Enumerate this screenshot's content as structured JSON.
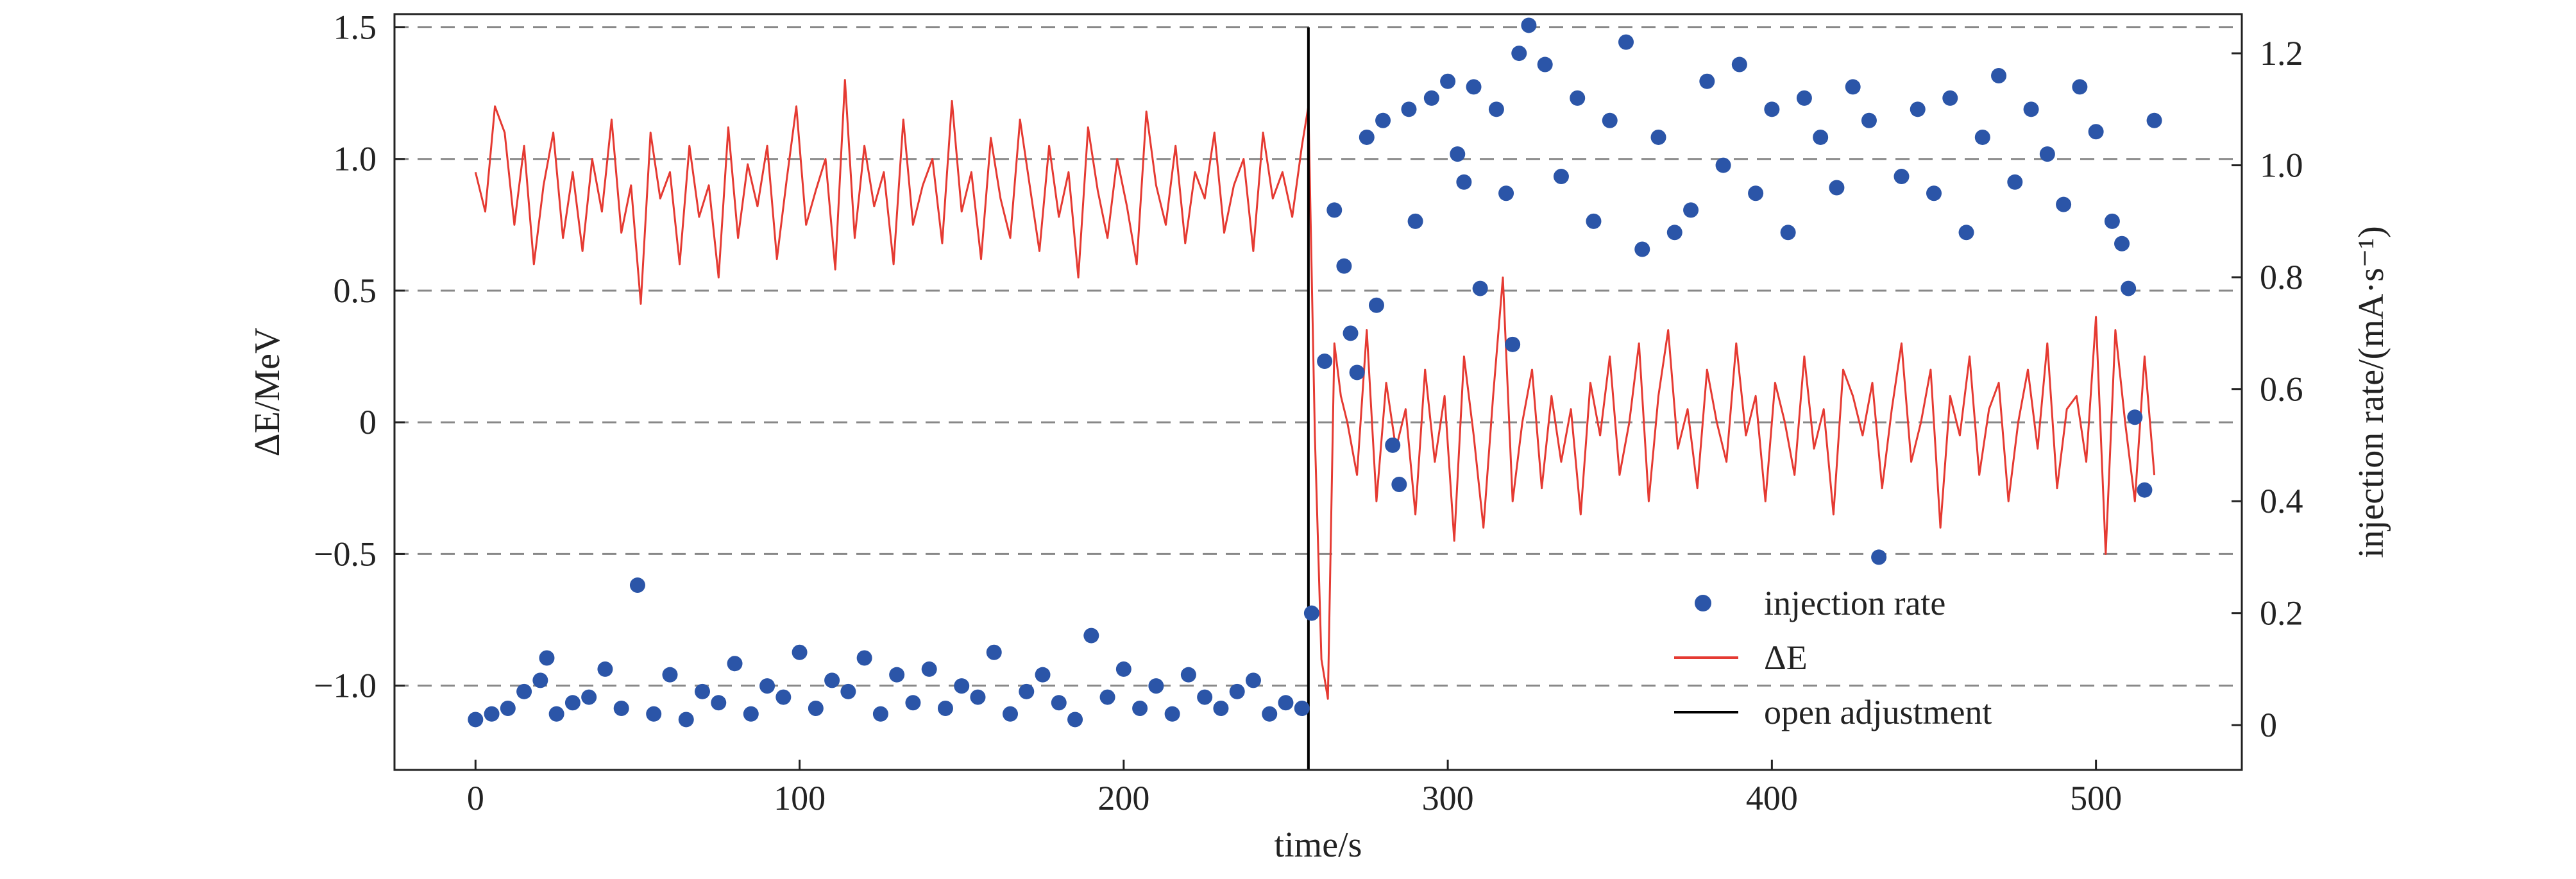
{
  "chart_data": {
    "type": "line",
    "title": "",
    "xlabel": "time/s",
    "ylabel_left": "ΔE/MeV",
    "ylabel_right": "injection rate/(mA·s⁻¹)",
    "xlim": [
      -25,
      545
    ],
    "ylim_left": [
      -1.32,
      1.55
    ],
    "ylim_right": [
      -0.08,
      1.27
    ],
    "x_ticks": [
      0,
      100,
      200,
      300,
      400,
      500
    ],
    "x_tick_labels": [
      "0",
      "100",
      "200",
      "300",
      "400",
      "500"
    ],
    "y_left_ticks": [
      -1.0,
      -0.5,
      0,
      0.5,
      1.0,
      1.5
    ],
    "y_left_tick_labels": [
      "−1.0",
      "−0.5",
      "0",
      "0.5",
      "1.0",
      "1.5"
    ],
    "y_right_ticks": [
      0,
      0.2,
      0.4,
      0.6,
      0.8,
      1.0,
      1.2
    ],
    "y_right_tick_labels": [
      "0",
      "0.2",
      "0.4",
      "0.6",
      "0.8",
      "1.0",
      "1.2"
    ],
    "grid": "dashed horizontal lines at left-axis ticks",
    "legend_position": "lower-right",
    "vline": {
      "x": 257,
      "y_top": 1.5,
      "name": "open adjustment",
      "color": "#000000"
    },
    "series": [
      {
        "name": "injection rate",
        "type": "scatter",
        "axis": "right",
        "color": "#2b55a8",
        "x": [
          0,
          5,
          10,
          15,
          20,
          22,
          25,
          30,
          35,
          40,
          45,
          50,
          55,
          60,
          65,
          70,
          75,
          80,
          85,
          90,
          95,
          100,
          105,
          110,
          115,
          120,
          125,
          130,
          135,
          140,
          145,
          150,
          155,
          160,
          165,
          170,
          175,
          180,
          185,
          190,
          195,
          200,
          205,
          210,
          215,
          220,
          225,
          230,
          235,
          240,
          245,
          250,
          255,
          258,
          262,
          265,
          268,
          270,
          272,
          275,
          278,
          280,
          283,
          285,
          288,
          290,
          295,
          300,
          303,
          305,
          308,
          310,
          315,
          318,
          320,
          322,
          325,
          330,
          335,
          340,
          345,
          350,
          355,
          360,
          365,
          370,
          375,
          380,
          385,
          390,
          395,
          400,
          405,
          410,
          415,
          420,
          425,
          430,
          433,
          440,
          445,
          450,
          455,
          460,
          465,
          470,
          475,
          480,
          485,
          490,
          495,
          500,
          505,
          508,
          510,
          512,
          515,
          518
        ],
        "values": [
          0.01,
          0.02,
          0.03,
          0.06,
          0.08,
          0.12,
          0.02,
          0.04,
          0.05,
          0.1,
          0.03,
          0.25,
          0.02,
          0.09,
          0.01,
          0.06,
          0.04,
          0.11,
          0.02,
          0.07,
          0.05,
          0.13,
          0.03,
          0.08,
          0.06,
          0.12,
          0.02,
          0.09,
          0.04,
          0.1,
          0.03,
          0.07,
          0.05,
          0.13,
          0.02,
          0.06,
          0.09,
          0.04,
          0.01,
          0.16,
          0.05,
          0.1,
          0.03,
          0.07,
          0.02,
          0.09,
          0.05,
          0.03,
          0.06,
          0.08,
          0.02,
          0.04,
          0.03,
          0.2,
          0.65,
          0.92,
          0.82,
          0.7,
          0.63,
          1.05,
          0.75,
          1.08,
          0.5,
          0.43,
          1.1,
          0.9,
          1.12,
          1.15,
          1.02,
          0.97,
          1.14,
          0.78,
          1.1,
          0.95,
          0.68,
          1.2,
          1.25,
          1.18,
          0.98,
          1.12,
          0.9,
          1.08,
          1.22,
          0.85,
          1.05,
          0.88,
          0.92,
          1.15,
          1.0,
          1.18,
          0.95,
          1.1,
          0.88,
          1.12,
          1.05,
          0.96,
          1.14,
          1.08,
          0.3,
          0.98,
          1.1,
          0.95,
          1.12,
          0.88,
          1.05,
          1.16,
          0.97,
          1.1,
          1.02,
          0.93,
          1.14,
          1.06,
          0.9,
          0.86,
          0.78,
          0.55,
          0.42,
          1.08
        ]
      },
      {
        "name": "ΔE",
        "type": "line",
        "axis": "left",
        "color": "#e53a32",
        "x": [
          0,
          3,
          6,
          9,
          12,
          15,
          18,
          21,
          24,
          27,
          30,
          33,
          36,
          39,
          42,
          45,
          48,
          51,
          54,
          57,
          60,
          63,
          66,
          69,
          72,
          75,
          78,
          81,
          84,
          87,
          90,
          93,
          96,
          99,
          102,
          105,
          108,
          111,
          114,
          117,
          120,
          123,
          126,
          129,
          132,
          135,
          138,
          141,
          144,
          147,
          150,
          153,
          156,
          159,
          162,
          165,
          168,
          171,
          174,
          177,
          180,
          183,
          186,
          189,
          192,
          195,
          198,
          201,
          204,
          207,
          210,
          213,
          216,
          219,
          222,
          225,
          228,
          231,
          234,
          237,
          240,
          243,
          246,
          249,
          252,
          255,
          257,
          259,
          261,
          263,
          265,
          267,
          269,
          272,
          275,
          278,
          281,
          284,
          287,
          290,
          293,
          296,
          299,
          302,
          305,
          308,
          311,
          314,
          317,
          320,
          323,
          326,
          329,
          332,
          335,
          338,
          341,
          344,
          347,
          350,
          353,
          356,
          359,
          362,
          365,
          368,
          371,
          374,
          377,
          380,
          383,
          386,
          389,
          392,
          395,
          398,
          401,
          404,
          407,
          410,
          413,
          416,
          419,
          422,
          425,
          428,
          431,
          434,
          437,
          440,
          443,
          446,
          449,
          452,
          455,
          458,
          461,
          464,
          467,
          470,
          473,
          476,
          479,
          482,
          485,
          488,
          491,
          494,
          497,
          500,
          503,
          506,
          509,
          512,
          515,
          518
        ],
        "values": [
          0.95,
          0.8,
          1.2,
          1.1,
          0.75,
          1.05,
          0.6,
          0.9,
          1.1,
          0.7,
          0.95,
          0.65,
          1.0,
          0.8,
          1.15,
          0.72,
          0.9,
          0.45,
          1.1,
          0.85,
          0.95,
          0.6,
          1.05,
          0.78,
          0.9,
          0.55,
          1.12,
          0.7,
          0.98,
          0.82,
          1.05,
          0.62,
          0.92,
          1.2,
          0.75,
          0.88,
          1.0,
          0.58,
          1.3,
          0.7,
          1.05,
          0.82,
          0.95,
          0.6,
          1.15,
          0.75,
          0.9,
          1.0,
          0.68,
          1.22,
          0.8,
          0.95,
          0.62,
          1.08,
          0.85,
          0.7,
          1.15,
          0.9,
          0.65,
          1.05,
          0.78,
          0.95,
          0.55,
          1.12,
          0.88,
          0.7,
          1.0,
          0.82,
          0.6,
          1.18,
          0.9,
          0.75,
          1.05,
          0.68,
          0.95,
          0.85,
          1.1,
          0.72,
          0.9,
          1.0,
          0.65,
          1.1,
          0.85,
          0.95,
          0.78,
          1.05,
          1.2,
          -0.05,
          -0.9,
          -1.05,
          0.3,
          0.1,
          0.0,
          -0.2,
          0.35,
          -0.3,
          0.15,
          -0.1,
          0.05,
          -0.35,
          0.2,
          -0.15,
          0.1,
          -0.45,
          0.25,
          -0.05,
          -0.4,
          0.1,
          0.55,
          -0.3,
          0.0,
          0.2,
          -0.25,
          0.1,
          -0.15,
          0.05,
          -0.35,
          0.15,
          -0.05,
          0.25,
          -0.2,
          0.0,
          0.3,
          -0.3,
          0.1,
          0.35,
          -0.1,
          0.05,
          -0.25,
          0.2,
          0.0,
          -0.15,
          0.3,
          -0.05,
          0.1,
          -0.3,
          0.15,
          0.0,
          -0.2,
          0.25,
          -0.1,
          0.05,
          -0.35,
          0.2,
          0.1,
          -0.05,
          0.15,
          -0.25,
          0.05,
          0.3,
          -0.15,
          0.0,
          0.2,
          -0.4,
          0.1,
          -0.05,
          0.25,
          -0.2,
          0.05,
          0.15,
          -0.3,
          0.0,
          0.2,
          -0.1,
          0.3,
          -0.25,
          0.05,
          0.1,
          -0.15,
          0.4,
          -0.5,
          0.35,
          0.0,
          -0.3,
          0.25,
          -0.2
        ]
      }
    ],
    "legend": [
      {
        "name": "injection rate",
        "marker": "dot",
        "color": "#2b55a8"
      },
      {
        "name": "ΔE",
        "marker": "line",
        "color": "#e53a32"
      },
      {
        "name": "open adjustment",
        "marker": "line",
        "color": "#000000"
      }
    ]
  }
}
